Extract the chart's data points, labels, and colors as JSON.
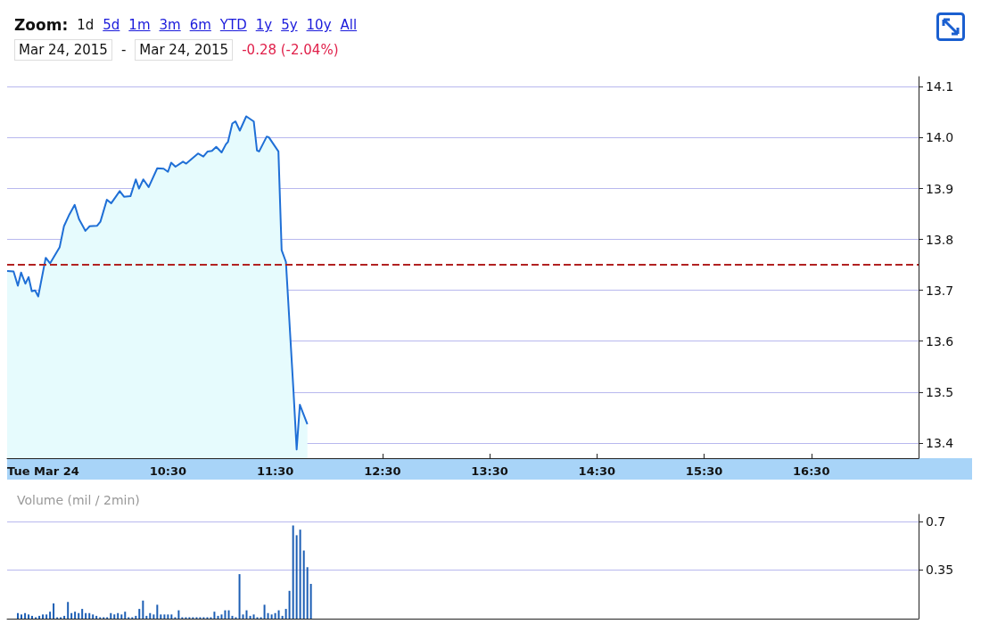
{
  "chart_data": [
    {
      "type": "area",
      "annotations": [
        "Zoom:",
        "1d",
        "5d",
        "1m",
        "3m",
        "6m",
        "YTD",
        "1y",
        "5y",
        "10y",
        "All",
        "Mar 24, 2015",
        "-",
        "Mar 24, 2015",
        "-0.28 (-2.04%)"
      ],
      "x": [
        9.0,
        9.06,
        9.1,
        9.13,
        9.17,
        9.2,
        9.23,
        9.26,
        9.29,
        9.36,
        9.4,
        9.49,
        9.53,
        9.58,
        9.63,
        9.67,
        9.73,
        9.77,
        9.84,
        9.87,
        9.93,
        9.97,
        10.05,
        10.09,
        10.15,
        10.2,
        10.23,
        10.27,
        10.32,
        10.4,
        10.46,
        10.5,
        10.53,
        10.57,
        10.64,
        10.67,
        10.78,
        10.83,
        10.87,
        10.91,
        10.95,
        11.0,
        11.04,
        11.06,
        11.1,
        11.13,
        11.17,
        11.23,
        11.3,
        11.33,
        11.35,
        11.42,
        11.44,
        11.53,
        11.56,
        11.6,
        11.67,
        11.7,
        11.73,
        11.8
      ],
      "values": [
        13.738,
        13.737,
        13.709,
        13.735,
        13.713,
        13.726,
        13.698,
        13.7,
        13.688,
        13.764,
        13.753,
        13.785,
        13.826,
        13.849,
        13.868,
        13.84,
        13.817,
        13.826,
        13.827,
        13.835,
        13.878,
        13.871,
        13.895,
        13.884,
        13.885,
        13.918,
        13.9,
        13.918,
        13.903,
        13.94,
        13.939,
        13.933,
        13.951,
        13.943,
        13.953,
        13.949,
        13.969,
        13.963,
        13.973,
        13.974,
        13.982,
        13.971,
        13.987,
        13.992,
        14.028,
        14.032,
        14.014,
        14.042,
        14.032,
        13.975,
        13.973,
        14.002,
        14.001,
        13.973,
        13.779,
        13.756,
        13.504,
        13.387,
        13.475,
        13.437
      ],
      "color": "#1f6fd6",
      "xlim": [
        9,
        17.5
      ],
      "xticks": [
        {
          "value": 9,
          "label": "Tue Mar 24"
        },
        {
          "value": 10.5,
          "label": "10:30"
        },
        {
          "value": 11.5,
          "label": "11:30"
        },
        {
          "value": 12.5,
          "label": "12:30"
        },
        {
          "value": 13.5,
          "label": "13:30"
        },
        {
          "value": 14.5,
          "label": "14:30"
        },
        {
          "value": 15.5,
          "label": "15:30"
        },
        {
          "value": 16.5,
          "label": "16:30"
        }
      ],
      "ylim": [
        13.37,
        14.12
      ],
      "yticks": [
        13.4,
        13.5,
        13.6,
        13.7,
        13.8,
        13.9,
        {
          "value": 14,
          "label": "14.0"
        },
        14.1
      ],
      "grid": "y",
      "ref_lines": [
        {
          "axis": "y",
          "value": 13.75,
          "color": "#b22222",
          "line_style": "dashed"
        }
      ]
    },
    {
      "type": "bar",
      "title": "Volume (mil / 2min)",
      "color": "#1c5eb4",
      "x": [
        9.1,
        9.133,
        9.167,
        9.2,
        9.233,
        9.267,
        9.3,
        9.333,
        9.367,
        9.4,
        9.433,
        9.467,
        9.5,
        9.533,
        9.567,
        9.6,
        9.633,
        9.667,
        9.7,
        9.733,
        9.767,
        9.8,
        9.833,
        9.867,
        9.9,
        9.933,
        9.967,
        10.0,
        10.033,
        10.067,
        10.1,
        10.133,
        10.167,
        10.2,
        10.233,
        10.267,
        10.3,
        10.333,
        10.367,
        10.4,
        10.433,
        10.467,
        10.5,
        10.533,
        10.567,
        10.6,
        10.633,
        10.667,
        10.7,
        10.733,
        10.767,
        10.8,
        10.833,
        10.867,
        10.9,
        10.933,
        10.967,
        11.0,
        11.033,
        11.067,
        11.1,
        11.133,
        11.167,
        11.2,
        11.233,
        11.267,
        11.3,
        11.333,
        11.367,
        11.4,
        11.433,
        11.467,
        11.5,
        11.533,
        11.567,
        11.6,
        11.633,
        11.667,
        11.7,
        11.733,
        11.767,
        11.8,
        11.833
      ],
      "values": [
        0.04,
        0.03,
        0.04,
        0.03,
        0.02,
        0.01,
        0.02,
        0.03,
        0.03,
        0.05,
        0.11,
        0.01,
        0.01,
        0.02,
        0.12,
        0.04,
        0.05,
        0.04,
        0.07,
        0.04,
        0.04,
        0.03,
        0.02,
        0.01,
        0.01,
        0.01,
        0.04,
        0.03,
        0.04,
        0.03,
        0.05,
        0.01,
        0.01,
        0.02,
        0.07,
        0.13,
        0.02,
        0.04,
        0.03,
        0.1,
        0.03,
        0.03,
        0.03,
        0.03,
        0.01,
        0.06,
        0.01,
        0.01,
        0.01,
        0.01,
        0.01,
        0.01,
        0.01,
        0.01,
        0.01,
        0.05,
        0.02,
        0.03,
        0.06,
        0.06,
        0.02,
        0.01,
        0.32,
        0.03,
        0.06,
        0.02,
        0.03,
        0.01,
        0.01,
        0.1,
        0.04,
        0.03,
        0.04,
        0.06,
        0.02,
        0.07,
        0.2,
        0.67,
        0.6,
        0.64,
        0.49,
        0.37,
        0.25
      ],
      "xlim": [
        9,
        17.5
      ],
      "ylim": [
        0,
        0.75
      ],
      "yticks": [
        0.35,
        0.7
      ],
      "grid": "y",
      "tick_labels": "y"
    }
  ]
}
